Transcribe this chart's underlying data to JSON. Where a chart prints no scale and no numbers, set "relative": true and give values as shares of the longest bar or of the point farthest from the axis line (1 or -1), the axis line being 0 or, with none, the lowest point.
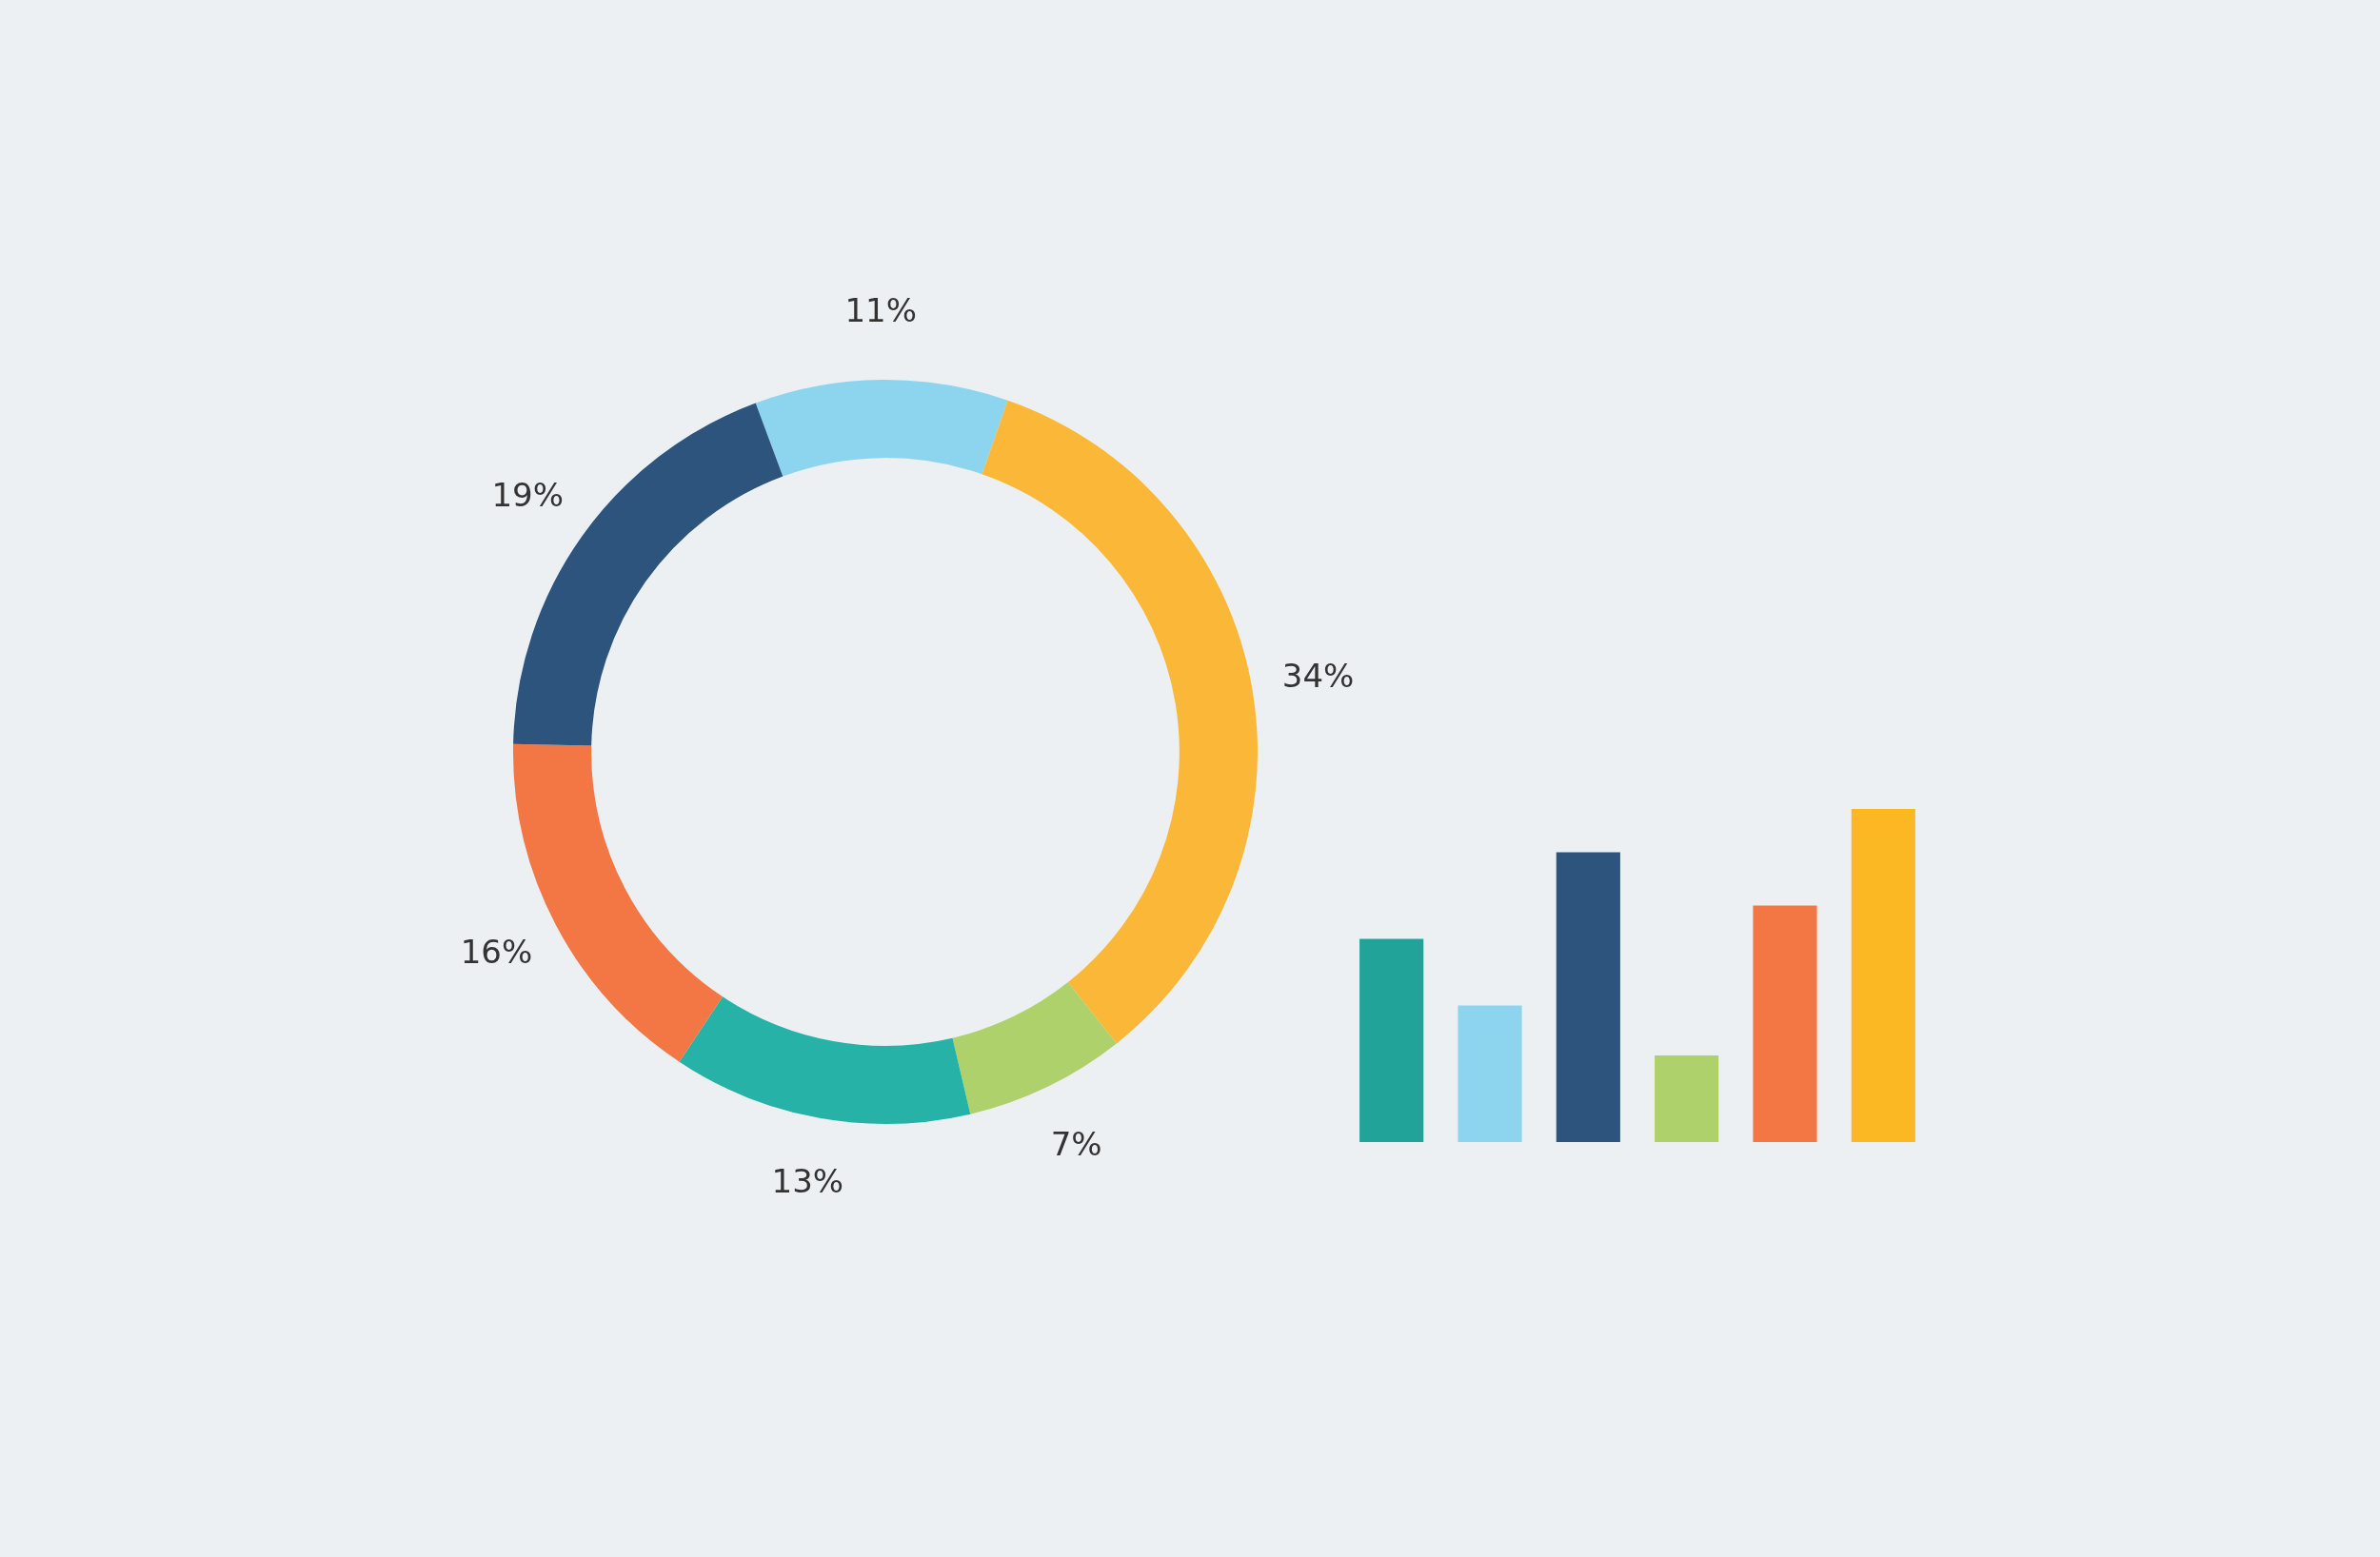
{
  "chart_data": [
    {
      "type": "donut",
      "categories": [
        null,
        null,
        null,
        null,
        null,
        null
      ],
      "values": [
        11,
        34,
        7,
        13,
        16,
        19
      ],
      "value_labels": [
        "11%",
        "34%",
        "7%",
        "13%",
        "16%",
        "19%"
      ],
      "colors": [
        "#8dd5ee",
        "#fbb737",
        "#afd16b",
        "#26b2a6",
        "#f37744",
        "#2d547c"
      ]
    },
    {
      "type": "bar",
      "relative": true,
      "categories": [
        null,
        null,
        null,
        null,
        null,
        null
      ],
      "values": [
        0.61,
        0.41,
        0.87,
        0.26,
        0.71,
        1
      ],
      "colors": [
        "#21a39a",
        "#8dd5ee",
        "#2d547c",
        "#afd16b",
        "#f37744",
        "#fcb823"
      ]
    }
  ]
}
